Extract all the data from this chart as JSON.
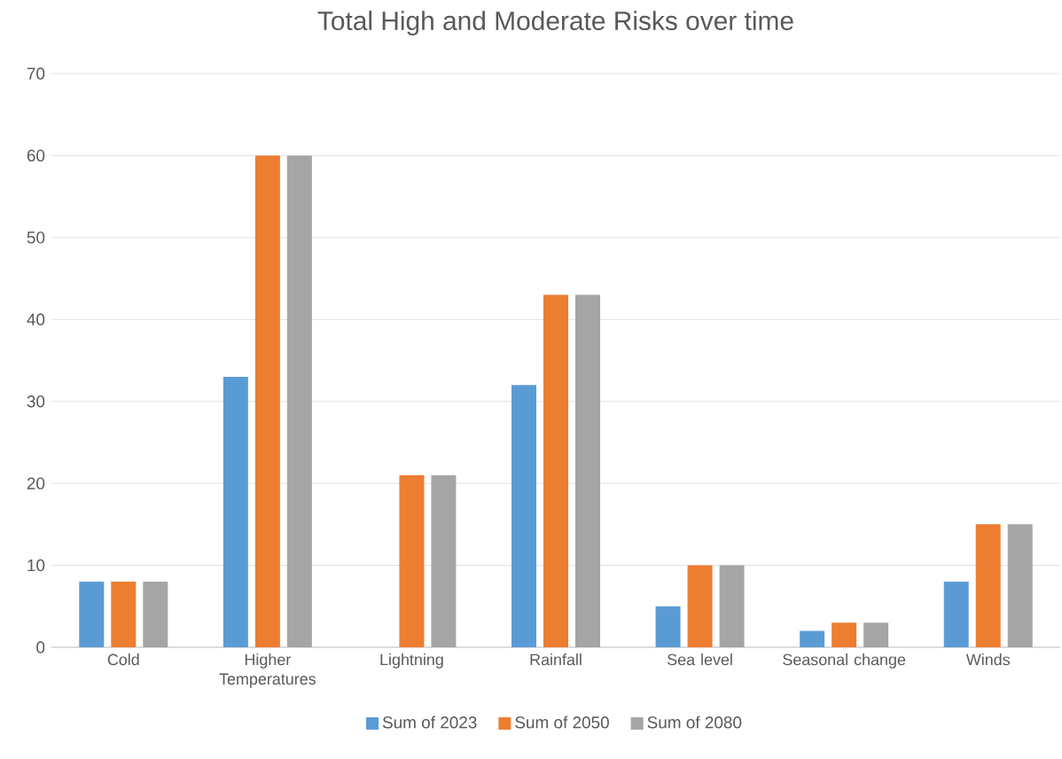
{
  "chart_data": {
    "type": "bar",
    "title": "Total High and Moderate Risks over time",
    "categories": [
      "Cold",
      "Higher Temperatures",
      "Lightning",
      "Rainfall",
      "Sea level",
      "Seasonal change",
      "Winds"
    ],
    "series": [
      {
        "name": "Sum of 2023",
        "color": "#5b9bd5",
        "values": [
          8,
          33,
          null,
          32,
          5,
          2,
          8
        ]
      },
      {
        "name": "Sum of 2050",
        "color": "#ed7d31",
        "values": [
          8,
          60,
          21,
          43,
          10,
          3,
          15
        ]
      },
      {
        "name": "Sum of 2080",
        "color": "#a5a5a5",
        "values": [
          8,
          60,
          21,
          43,
          10,
          3,
          15
        ]
      }
    ],
    "ylim": [
      0,
      70
    ],
    "yticks": [
      0,
      10,
      20,
      30,
      40,
      50,
      60,
      70
    ],
    "grid": "y",
    "legend": "bottom"
  }
}
